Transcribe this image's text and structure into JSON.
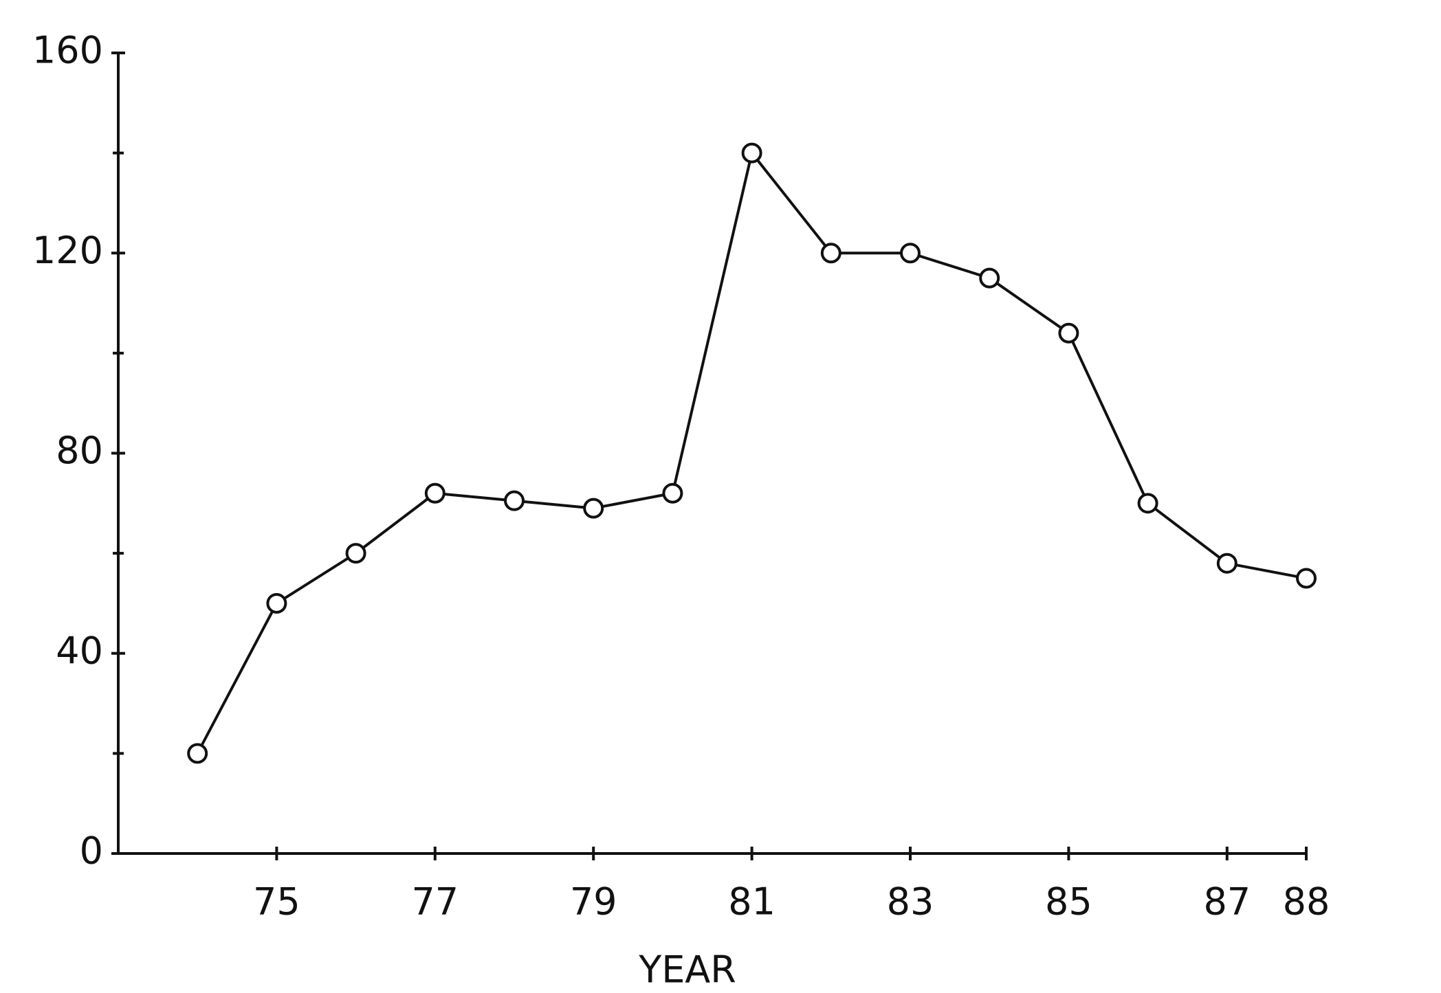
{
  "chart_data": {
    "type": "line",
    "x_label": "YEAR",
    "x": [
      74,
      75,
      76,
      77,
      78,
      79,
      80,
      81,
      82,
      83,
      84,
      85,
      86,
      87,
      88
    ],
    "series": [
      {
        "color": "#111111",
        "values": [
          20,
          50,
          60,
          72,
          70.5,
          69,
          72,
          140,
          120,
          120,
          115,
          104,
          70,
          58,
          55
        ]
      }
    ],
    "xlim": [
      73,
      88
    ],
    "xticks": [
      75,
      77,
      79,
      81,
      83,
      85,
      87,
      88
    ],
    "ylim": [
      0,
      160
    ],
    "yticks": [
      0,
      40,
      80,
      120,
      160
    ],
    "yminor_ticks": [
      20,
      60,
      100,
      140
    ],
    "grid": false
  }
}
